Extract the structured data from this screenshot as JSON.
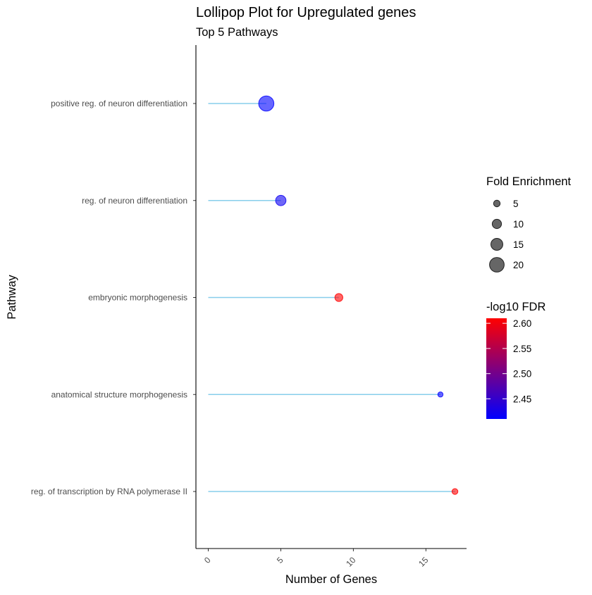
{
  "chart_data": {
    "type": "lollipop",
    "title": "Lollipop Plot for Upregulated genes",
    "subtitle": "Top 5 Pathways",
    "xlabel": "Number of Genes",
    "ylabel": "Pathway",
    "xlim": [
      -0.85,
      17.8
    ],
    "xticks": [
      0,
      5,
      10,
      15
    ],
    "xtick_labels": [
      "0",
      "5",
      "10",
      "15"
    ],
    "stem_color": "#87CEEB",
    "categories": [
      "positive reg. of neuron differentiation",
      "reg. of neuron differentiation",
      "embryonic morphogenesis",
      "anatomical structure morphogenesis",
      "reg. of transcription by RNA polymerase II"
    ],
    "values": [
      4,
      5,
      9,
      16,
      17
    ],
    "fold_enrichment": [
      21,
      12,
      7.5,
      2.3,
      3.6
    ],
    "neg_log10_fdr": [
      2.41,
      2.42,
      2.61,
      2.41,
      2.61
    ],
    "legend_size": {
      "title": "Fold Enrichment",
      "values": [
        5,
        10,
        15,
        20
      ],
      "labels": [
        "5",
        "10",
        "15",
        "20"
      ]
    },
    "legend_color": {
      "title": "-log10 FDR",
      "min": 2.41,
      "max": 2.61,
      "ticks": [
        2.45,
        2.5,
        2.55,
        2.6
      ],
      "tick_labels": [
        "2.45",
        "2.50",
        "2.55",
        "2.60"
      ],
      "low_color": "#0000FF",
      "high_color": "#FF0000"
    },
    "point_alpha": 0.6,
    "grid": false,
    "legend_position": "right"
  }
}
